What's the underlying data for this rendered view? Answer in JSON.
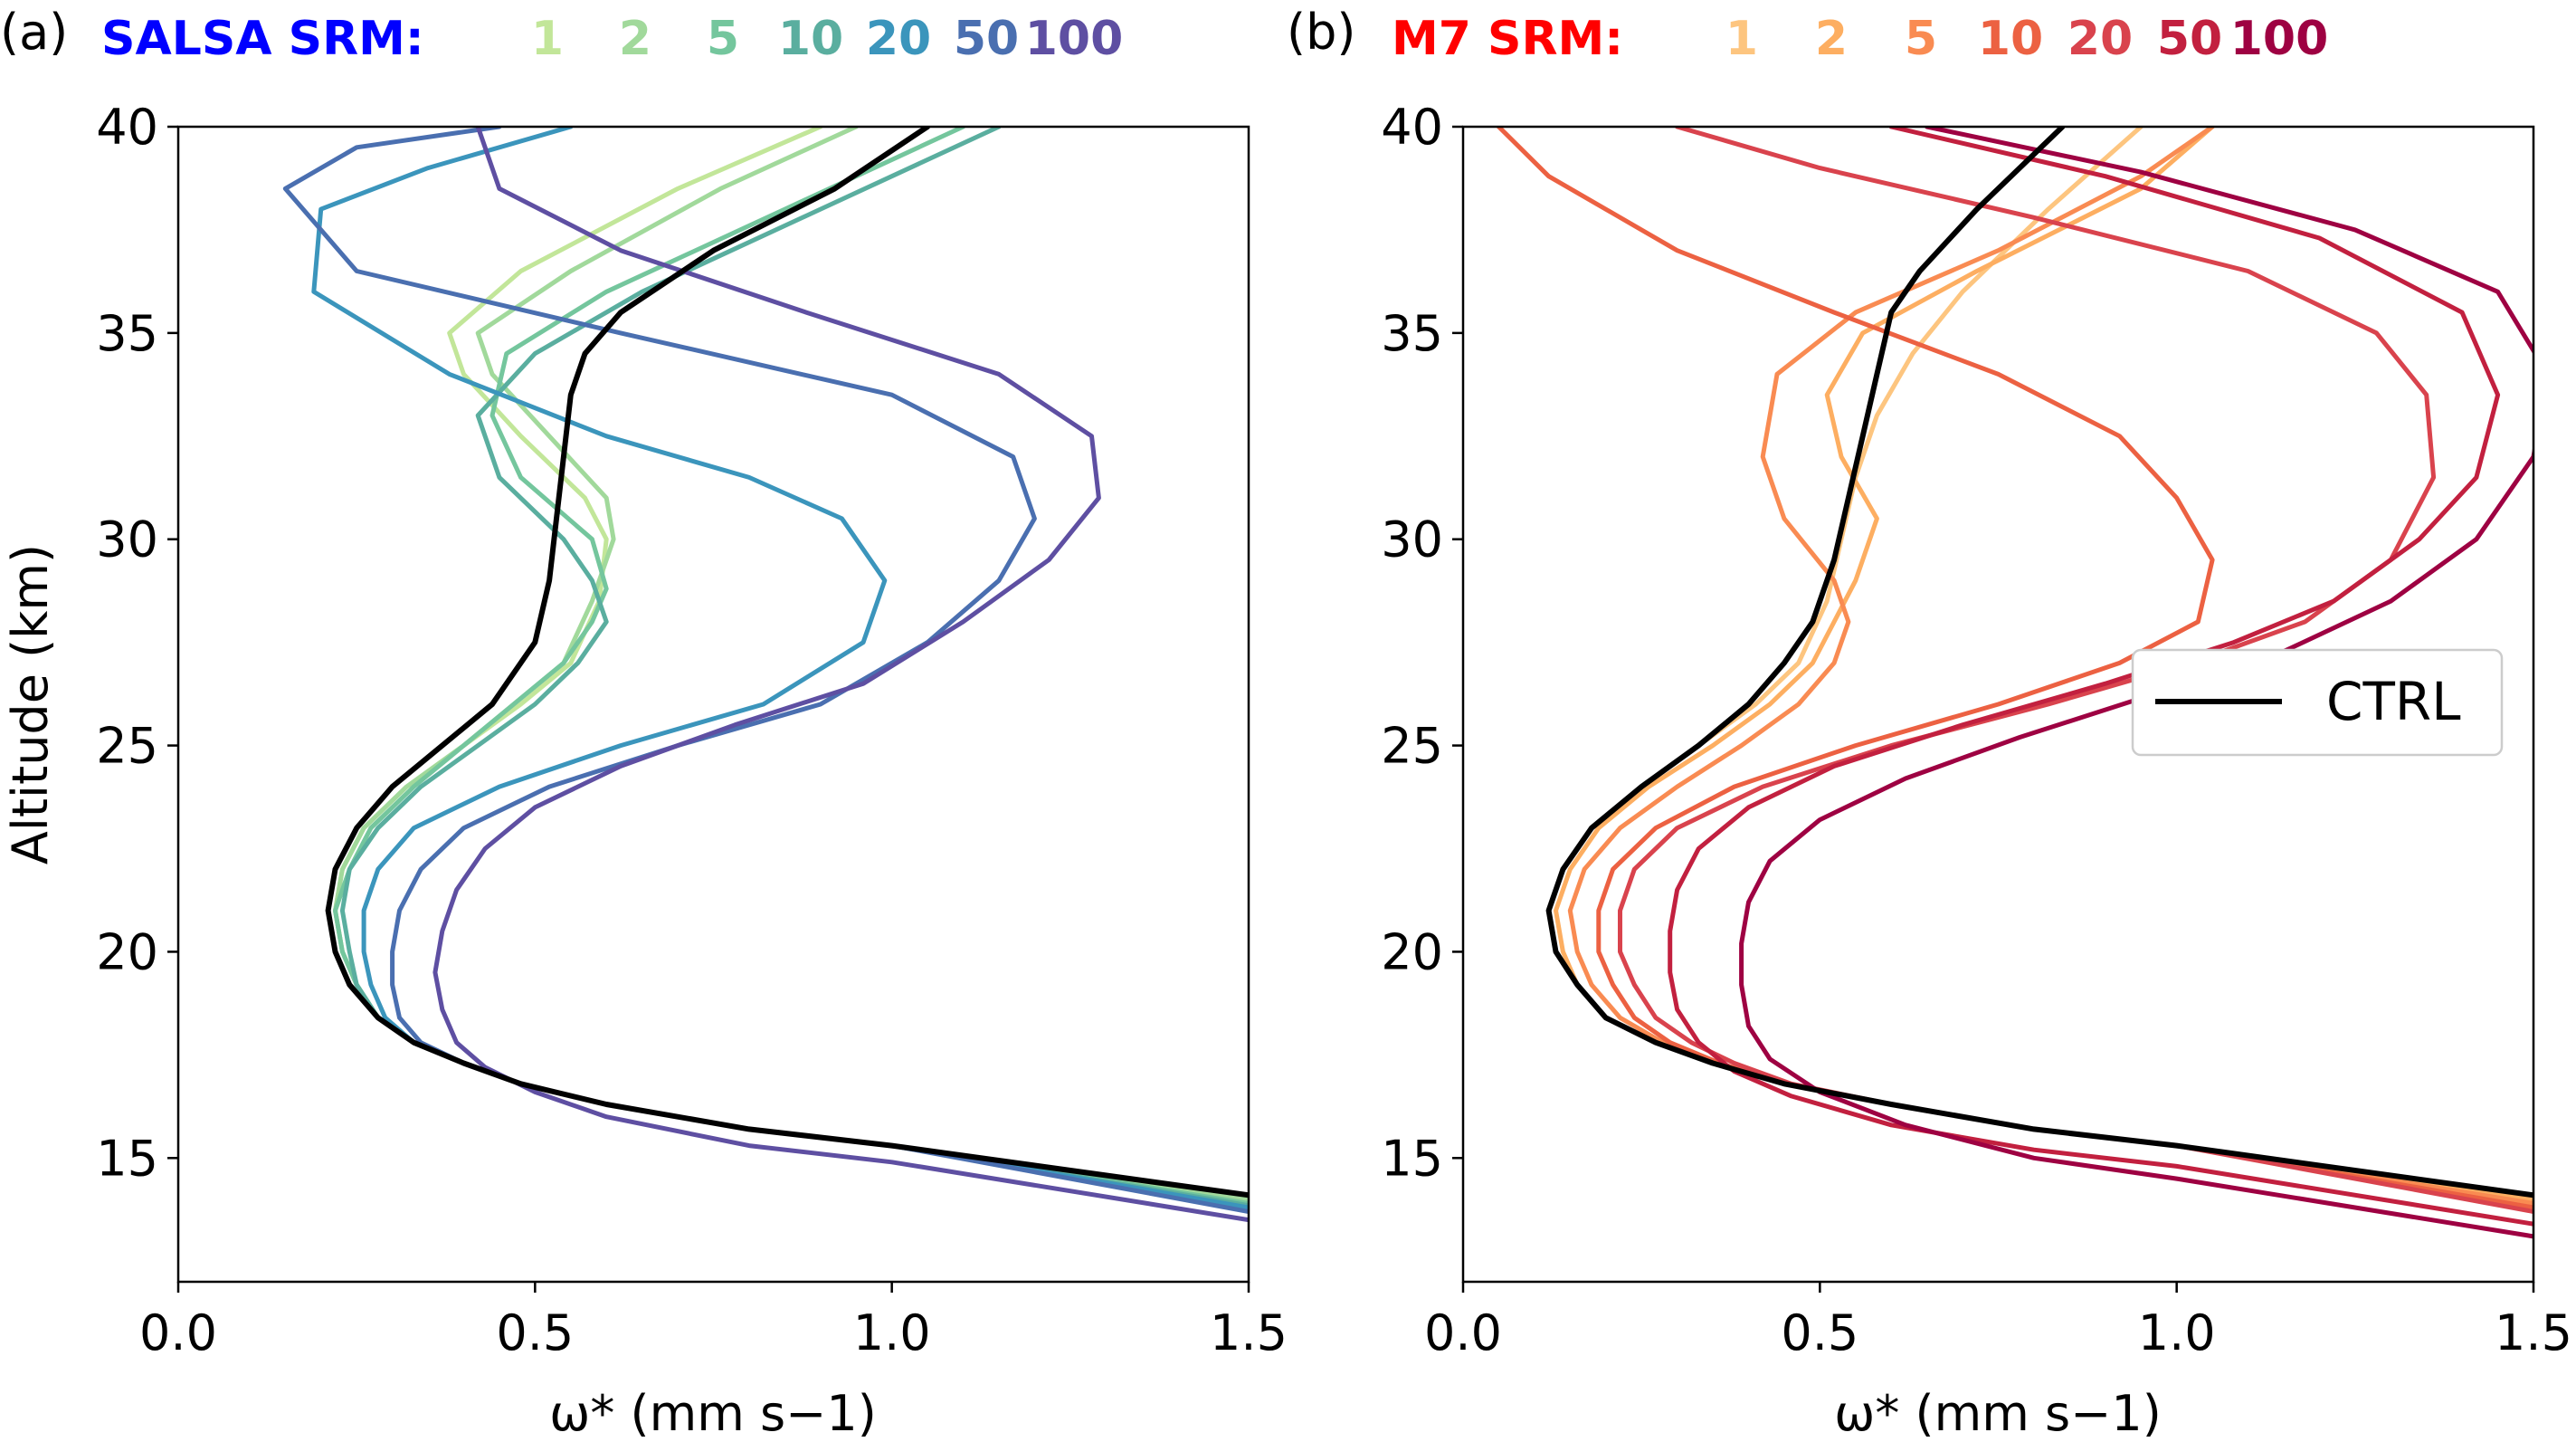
{
  "chart_data": [
    {
      "type": "line",
      "panel_label": "(a)",
      "header": {
        "title": "SALSA SRM:",
        "title_color": "#0000ff",
        "values": [
          "1",
          "2",
          "5",
          "10",
          "20",
          "50",
          "100"
        ]
      },
      "xlabel": "ω* (mm s−1)",
      "ylabel": "Altitude (km)",
      "xlim": [
        0.0,
        1.5
      ],
      "ylim": [
        12,
        40
      ],
      "xticks": [
        "0.0",
        "0.5",
        "1.0",
        "1.5"
      ],
      "yticks": [
        "15",
        "20",
        "25",
        "30",
        "35",
        "40"
      ],
      "grid": false,
      "series": [
        {
          "name": "1",
          "color": "#c2e699",
          "x": [
            1.5,
            1.0,
            0.8,
            0.6,
            0.48,
            0.4,
            0.33,
            0.28,
            0.25,
            0.23,
            0.22,
            0.23,
            0.26,
            0.32,
            0.4,
            0.48,
            0.55,
            0.59,
            0.6,
            0.57,
            0.48,
            0.4,
            0.38,
            0.48,
            0.7,
            0.9
          ],
          "y": [
            14.1,
            15.3,
            15.7,
            16.3,
            16.8,
            17.3,
            17.8,
            18.4,
            19.2,
            20.0,
            21.0,
            22.0,
            23.0,
            24.0,
            25.0,
            26.0,
            27.0,
            28.5,
            30.0,
            31.0,
            32.5,
            34.0,
            35.0,
            36.5,
            38.5,
            40.0
          ]
        },
        {
          "name": "2",
          "color": "#a1d99b",
          "x": [
            1.5,
            1.0,
            0.8,
            0.6,
            0.48,
            0.4,
            0.33,
            0.28,
            0.25,
            0.23,
            0.22,
            0.23,
            0.26,
            0.32,
            0.4,
            0.47,
            0.54,
            0.58,
            0.61,
            0.6,
            0.52,
            0.44,
            0.42,
            0.55,
            0.76,
            0.95
          ],
          "y": [
            14.0,
            15.3,
            15.7,
            16.3,
            16.8,
            17.3,
            17.8,
            18.4,
            19.2,
            20.0,
            21.0,
            22.0,
            23.0,
            24.0,
            25.0,
            26.0,
            27.0,
            28.5,
            30.0,
            31.0,
            32.5,
            34.0,
            35.0,
            36.5,
            38.5,
            40.0
          ]
        },
        {
          "name": "5",
          "color": "#74c69d",
          "x": [
            1.5,
            1.0,
            0.8,
            0.6,
            0.48,
            0.4,
            0.33,
            0.28,
            0.25,
            0.23,
            0.22,
            0.24,
            0.27,
            0.33,
            0.4,
            0.47,
            0.54,
            0.58,
            0.6,
            0.58,
            0.48,
            0.44,
            0.46,
            0.6,
            0.85,
            1.1
          ],
          "y": [
            13.9,
            15.3,
            15.7,
            16.3,
            16.8,
            17.3,
            17.8,
            18.4,
            19.2,
            20.0,
            21.0,
            22.0,
            23.0,
            24.0,
            25.0,
            26.0,
            27.0,
            28.0,
            28.8,
            30.0,
            31.5,
            33.0,
            34.5,
            36.0,
            38.0,
            40.0
          ]
        },
        {
          "name": "10",
          "color": "#5aae9f",
          "x": [
            1.5,
            1.0,
            0.8,
            0.6,
            0.48,
            0.4,
            0.33,
            0.28,
            0.25,
            0.24,
            0.23,
            0.24,
            0.28,
            0.34,
            0.42,
            0.5,
            0.56,
            0.6,
            0.58,
            0.54,
            0.45,
            0.42,
            0.5,
            0.65,
            0.9,
            1.15
          ],
          "y": [
            13.85,
            15.3,
            15.7,
            16.3,
            16.8,
            17.3,
            17.8,
            18.4,
            19.2,
            20.0,
            21.0,
            22.0,
            23.0,
            24.0,
            25.0,
            26.0,
            27.0,
            28.0,
            29.0,
            30.0,
            31.5,
            33.0,
            34.5,
            36.0,
            38.0,
            40.0
          ]
        },
        {
          "name": "20",
          "color": "#3b95bc",
          "x": [
            1.5,
            1.0,
            0.8,
            0.6,
            0.48,
            0.4,
            0.33,
            0.29,
            0.27,
            0.26,
            0.26,
            0.28,
            0.33,
            0.45,
            0.62,
            0.82,
            0.96,
            0.99,
            0.93,
            0.8,
            0.6,
            0.38,
            0.19,
            0.2,
            0.35,
            0.55
          ],
          "y": [
            13.8,
            15.3,
            15.7,
            16.3,
            16.8,
            17.3,
            17.8,
            18.4,
            19.2,
            20.0,
            21.0,
            22.0,
            23.0,
            24.0,
            25.0,
            26.0,
            27.5,
            29.0,
            30.5,
            31.5,
            32.5,
            34.0,
            36.0,
            38.0,
            39.0,
            40.0
          ]
        },
        {
          "name": "50",
          "color": "#4a6fb0",
          "x": [
            1.5,
            1.0,
            0.8,
            0.6,
            0.48,
            0.4,
            0.34,
            0.31,
            0.3,
            0.3,
            0.31,
            0.34,
            0.4,
            0.52,
            0.7,
            0.9,
            1.05,
            1.15,
            1.2,
            1.17,
            1.0,
            0.62,
            0.25,
            0.15,
            0.25,
            0.45
          ],
          "y": [
            13.7,
            15.3,
            15.7,
            16.3,
            16.8,
            17.3,
            17.8,
            18.4,
            19.2,
            20.0,
            21.0,
            22.0,
            23.0,
            24.0,
            25.0,
            26.0,
            27.5,
            29.0,
            30.5,
            32.0,
            33.5,
            35.0,
            36.5,
            38.5,
            39.5,
            40.0
          ]
        },
        {
          "name": "100",
          "color": "#5e4fa2",
          "x": [
            1.5,
            1.0,
            0.8,
            0.6,
            0.5,
            0.43,
            0.39,
            0.37,
            0.36,
            0.37,
            0.39,
            0.43,
            0.5,
            0.62,
            0.78,
            0.96,
            1.1,
            1.22,
            1.29,
            1.28,
            1.15,
            0.88,
            0.62,
            0.45,
            0.42
          ],
          "y": [
            13.5,
            14.9,
            15.3,
            16.0,
            16.6,
            17.2,
            17.8,
            18.6,
            19.5,
            20.5,
            21.5,
            22.5,
            23.5,
            24.5,
            25.5,
            26.5,
            28.0,
            29.5,
            31.0,
            32.5,
            34.0,
            35.5,
            37.0,
            38.5,
            40.0
          ]
        },
        {
          "name": "CTRL",
          "color": "#000000",
          "x": [
            1.5,
            1.0,
            0.8,
            0.6,
            0.48,
            0.4,
            0.33,
            0.28,
            0.24,
            0.22,
            0.21,
            0.22,
            0.25,
            0.3,
            0.37,
            0.44,
            0.5,
            0.52,
            0.53,
            0.54,
            0.55,
            0.57,
            0.62,
            0.75,
            0.92,
            1.05
          ],
          "y": [
            14.1,
            15.3,
            15.7,
            16.3,
            16.8,
            17.3,
            17.8,
            18.4,
            19.2,
            20.0,
            21.0,
            22.0,
            23.0,
            24.0,
            25.0,
            26.0,
            27.5,
            29.0,
            30.5,
            32.0,
            33.5,
            34.5,
            35.5,
            37.0,
            38.5,
            40.0
          ]
        }
      ]
    },
    {
      "type": "line",
      "panel_label": "(b)",
      "header": {
        "title": "M7 SRM:",
        "title_color": "#ff0000",
        "values": [
          "1",
          "2",
          "5",
          "10",
          "20",
          "50",
          "100"
        ]
      },
      "xlabel": "ω* (mm s−1)",
      "ylabel": "",
      "xlim": [
        0.0,
        1.5
      ],
      "ylim": [
        12,
        40
      ],
      "xticks": [
        "0.0",
        "0.5",
        "1.0",
        "1.5"
      ],
      "yticks": [
        "15",
        "20",
        "25",
        "30",
        "35",
        "40"
      ],
      "grid": false,
      "legend": {
        "label": "CTRL",
        "position": "right"
      },
      "series": [
        {
          "name": "1",
          "color": "#fdc57f",
          "x": [
            1.5,
            1.0,
            0.8,
            0.6,
            0.45,
            0.35,
            0.27,
            0.2,
            0.16,
            0.13,
            0.12,
            0.14,
            0.18,
            0.25,
            0.33,
            0.41,
            0.47,
            0.51,
            0.53,
            0.55,
            0.58,
            0.63,
            0.7,
            0.82,
            0.95
          ],
          "y": [
            14.1,
            15.3,
            15.7,
            16.3,
            16.8,
            17.3,
            17.8,
            18.4,
            19.2,
            20.0,
            21.0,
            22.0,
            23.0,
            24.0,
            25.0,
            26.0,
            27.0,
            28.5,
            30.0,
            31.5,
            33.0,
            34.5,
            36.0,
            38.0,
            40.0
          ]
        },
        {
          "name": "2",
          "color": "#fdae61",
          "x": [
            1.5,
            1.0,
            0.8,
            0.6,
            0.45,
            0.35,
            0.27,
            0.2,
            0.16,
            0.14,
            0.13,
            0.15,
            0.19,
            0.26,
            0.35,
            0.43,
            0.49,
            0.52,
            0.55,
            0.58,
            0.53,
            0.51,
            0.56,
            0.72,
            0.95,
            1.05
          ],
          "y": [
            14.0,
            15.3,
            15.7,
            16.3,
            16.8,
            17.3,
            17.8,
            18.4,
            19.2,
            20.0,
            21.0,
            22.0,
            23.0,
            24.0,
            25.0,
            26.0,
            27.0,
            28.0,
            29.0,
            30.5,
            32.0,
            33.5,
            35.0,
            36.5,
            38.5,
            40.0
          ]
        },
        {
          "name": "5",
          "color": "#f98b52",
          "x": [
            1.5,
            1.0,
            0.8,
            0.6,
            0.45,
            0.35,
            0.28,
            0.22,
            0.18,
            0.16,
            0.15,
            0.17,
            0.22,
            0.3,
            0.39,
            0.47,
            0.52,
            0.54,
            0.52,
            0.45,
            0.42,
            0.44,
            0.55,
            0.75,
            0.95,
            1.05
          ],
          "y": [
            13.9,
            15.3,
            15.7,
            16.3,
            16.8,
            17.3,
            17.8,
            18.4,
            19.2,
            20.0,
            21.0,
            22.0,
            23.0,
            24.0,
            25.0,
            26.0,
            27.0,
            28.0,
            29.0,
            30.5,
            32.0,
            34.0,
            35.5,
            37.0,
            38.8,
            40.0
          ]
        },
        {
          "name": "10",
          "color": "#ec6142",
          "x": [
            1.5,
            1.0,
            0.8,
            0.6,
            0.45,
            0.36,
            0.29,
            0.24,
            0.21,
            0.19,
            0.19,
            0.21,
            0.27,
            0.38,
            0.55,
            0.75,
            0.92,
            1.03,
            1.05,
            1.0,
            0.92,
            0.75,
            0.52,
            0.3,
            0.12,
            0.05
          ],
          "y": [
            13.8,
            15.3,
            15.7,
            16.3,
            16.8,
            17.3,
            17.8,
            18.4,
            19.2,
            20.0,
            21.0,
            22.0,
            23.0,
            24.0,
            25.0,
            26.0,
            27.0,
            28.0,
            29.5,
            31.0,
            32.5,
            34.0,
            35.5,
            37.0,
            38.8,
            40.0
          ]
        },
        {
          "name": "20",
          "color": "#d9434d",
          "x": [
            1.5,
            1.0,
            0.8,
            0.6,
            0.46,
            0.38,
            0.32,
            0.27,
            0.24,
            0.22,
            0.22,
            0.24,
            0.3,
            0.42,
            0.6,
            0.82,
            1.02,
            1.18,
            1.3,
            1.36,
            1.35,
            1.28,
            1.1,
            0.8,
            0.5,
            0.3
          ],
          "y": [
            13.7,
            15.3,
            15.7,
            16.3,
            16.8,
            17.3,
            17.8,
            18.4,
            19.2,
            20.0,
            21.0,
            22.0,
            23.0,
            24.0,
            25.0,
            26.0,
            27.0,
            28.0,
            29.5,
            31.5,
            33.5,
            35.0,
            36.5,
            37.8,
            39.0,
            40.0
          ]
        },
        {
          "name": "50",
          "color": "#c2203f",
          "x": [
            1.5,
            1.0,
            0.8,
            0.6,
            0.46,
            0.38,
            0.33,
            0.3,
            0.29,
            0.29,
            0.3,
            0.33,
            0.4,
            0.52,
            0.7,
            0.9,
            1.08,
            1.22,
            1.34,
            1.42,
            1.45,
            1.4,
            1.2,
            0.9,
            0.6
          ],
          "y": [
            13.4,
            14.8,
            15.2,
            15.8,
            16.5,
            17.1,
            17.8,
            18.6,
            19.5,
            20.5,
            21.5,
            22.5,
            23.5,
            24.5,
            25.5,
            26.5,
            27.5,
            28.5,
            30.0,
            31.5,
            33.5,
            35.5,
            37.3,
            38.8,
            40.0
          ]
        },
        {
          "name": "100",
          "color": "#9e0142",
          "x": [
            1.5,
            1.0,
            0.8,
            0.62,
            0.5,
            0.43,
            0.4,
            0.39,
            0.39,
            0.4,
            0.43,
            0.5,
            0.62,
            0.78,
            0.96,
            1.14,
            1.3,
            1.42,
            1.5,
            1.52,
            1.45,
            1.25,
            0.95,
            0.65
          ],
          "y": [
            13.1,
            14.5,
            15.0,
            15.8,
            16.6,
            17.4,
            18.2,
            19.2,
            20.2,
            21.2,
            22.2,
            23.2,
            24.2,
            25.2,
            26.2,
            27.2,
            28.5,
            30.0,
            32.0,
            34.0,
            36.0,
            37.5,
            38.9,
            40.0
          ]
        },
        {
          "name": "CTRL",
          "color": "#000000",
          "x": [
            1.5,
            1.0,
            0.8,
            0.6,
            0.45,
            0.35,
            0.27,
            0.2,
            0.16,
            0.13,
            0.12,
            0.14,
            0.18,
            0.25,
            0.33,
            0.4,
            0.45,
            0.49,
            0.52,
            0.54,
            0.56,
            0.58,
            0.6,
            0.64,
            0.72,
            0.84
          ],
          "y": [
            14.1,
            15.3,
            15.7,
            16.3,
            16.8,
            17.3,
            17.8,
            18.4,
            19.2,
            20.0,
            21.0,
            22.0,
            23.0,
            24.0,
            25.0,
            26.0,
            27.0,
            28.0,
            29.5,
            31.0,
            32.5,
            34.0,
            35.5,
            36.5,
            38.0,
            40.0
          ]
        }
      ]
    }
  ]
}
